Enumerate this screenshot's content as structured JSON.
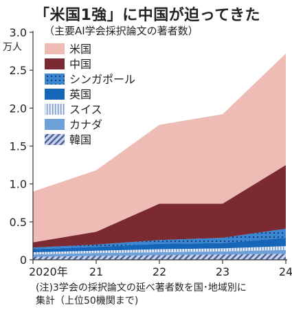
{
  "chart_data": {
    "type": "area",
    "stacked": true,
    "title": "「米国1強」に中国が迫ってきた",
    "subtitle": "（主要AI学会採択論文の著者数）",
    "unit": "万人",
    "categories": [
      "2020年",
      "21",
      "22",
      "23",
      "24"
    ],
    "ylim": [
      0,
      3.0
    ],
    "yticks": [
      "0",
      "0.5",
      "1.0",
      "1.5",
      "2.0",
      "2.5",
      "3.0"
    ],
    "series": [
      {
        "name": "韓国",
        "values": [
          0.04,
          0.05,
          0.06,
          0.07,
          0.08
        ],
        "color": "#5b6fa8",
        "pattern": "diag"
      },
      {
        "name": "カナダ",
        "values": [
          0.03,
          0.04,
          0.04,
          0.04,
          0.05
        ],
        "color": "#6da0d8",
        "pattern": "solid"
      },
      {
        "name": "スイス",
        "values": [
          0.03,
          0.03,
          0.04,
          0.04,
          0.05
        ],
        "color": "#c5d5ec",
        "pattern": "vlines"
      },
      {
        "name": "英国",
        "values": [
          0.04,
          0.05,
          0.07,
          0.07,
          0.11
        ],
        "color": "#1565b8",
        "pattern": "solid"
      },
      {
        "name": "シンガポール",
        "values": [
          0.02,
          0.03,
          0.05,
          0.07,
          0.12
        ],
        "color": "#2b7ac9",
        "pattern": "dots"
      },
      {
        "name": "中国",
        "values": [
          0.07,
          0.17,
          0.48,
          0.45,
          0.84
        ],
        "color": "#7a2a30",
        "pattern": "solid"
      },
      {
        "name": "米国",
        "values": [
          0.67,
          0.81,
          1.04,
          1.18,
          1.47
        ],
        "color": "#efbcb5",
        "pattern": "solid"
      }
    ],
    "legend_order": [
      "米国",
      "中国",
      "シンガポール",
      "英国",
      "スイス",
      "カナダ",
      "韓国"
    ],
    "legend_placement": "top-left"
  },
  "note": {
    "line1": "(注)3学会の採択論文の延べ著者数を国･地域別に",
    "line2": "集計（上位50機関まで)"
  }
}
